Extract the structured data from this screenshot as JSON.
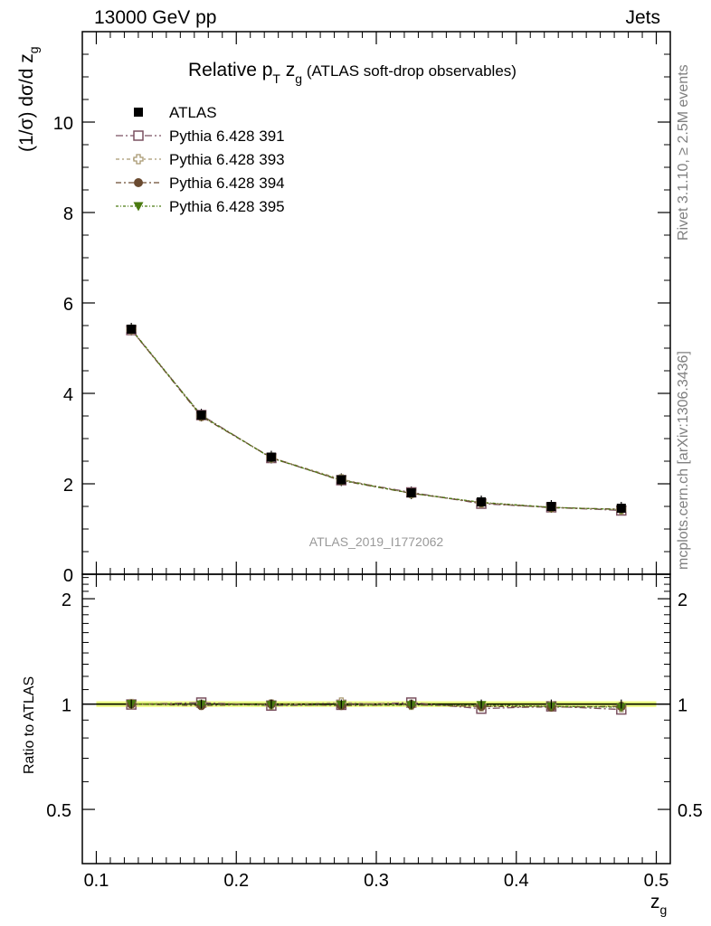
{
  "header": {
    "left": "13000 GeV pp",
    "right": "Jets"
  },
  "side_text": {
    "rivet": "Rivet 3.1.10, ≥ 2.5M events",
    "mcplots": "mcplots.cern.ch [arXiv:1306.3436]"
  },
  "title": {
    "prefix": "Relative p",
    "sub1": "T",
    "mid": " z",
    "sub2": "g",
    "suffix": " (ATLAS soft-drop observables)"
  },
  "watermark": "ATLAS_2019_I1772062",
  "colors": {
    "atlas": "#000000",
    "p391": "#7a5060",
    "p393": "#a89870",
    "p394": "#6a4a30",
    "p395": "#4a7a10",
    "band_outer": "#f4ff9a",
    "band_inner": "#d8f060"
  },
  "chart_data": [
    {
      "type": "line",
      "panel": "main",
      "ylabel": "(1/σ) dσ/d z",
      "ylabel_sub": "g",
      "xlim": [
        0.09,
        0.51
      ],
      "ylim": [
        0,
        12
      ],
      "x_ticks": [
        0.1,
        0.2,
        0.3,
        0.4,
        0.5
      ],
      "y_ticks": [
        0,
        2,
        4,
        6,
        8,
        10
      ],
      "y_tick_labels": [
        "0",
        "2",
        "4",
        "6",
        "8",
        "10"
      ],
      "legend_position": "top-left",
      "x": [
        0.125,
        0.175,
        0.225,
        0.275,
        0.325,
        0.375,
        0.425,
        0.475
      ],
      "series": [
        {
          "name": "ATLAS",
          "marker": "filled-square",
          "values": [
            5.42,
            3.52,
            2.59,
            2.09,
            1.8,
            1.6,
            1.5,
            1.46
          ]
        },
        {
          "name": "Pythia 6.428 391",
          "marker": "open-square",
          "values": [
            5.4,
            3.52,
            2.57,
            2.08,
            1.81,
            1.56,
            1.48,
            1.41
          ]
        },
        {
          "name": "Pythia 6.428 393",
          "marker": "open-cross",
          "values": [
            5.41,
            3.5,
            2.58,
            2.1,
            1.79,
            1.58,
            1.48,
            1.43
          ]
        },
        {
          "name": "Pythia 6.428 394",
          "marker": "filled-circle",
          "values": [
            5.41,
            3.49,
            2.58,
            2.07,
            1.79,
            1.58,
            1.47,
            1.44
          ]
        },
        {
          "name": "Pythia 6.428 395",
          "marker": "filled-triangle-down",
          "values": [
            5.42,
            3.51,
            2.57,
            2.08,
            1.79,
            1.59,
            1.48,
            1.43
          ]
        }
      ]
    },
    {
      "type": "line",
      "panel": "ratio",
      "ylabel": "Ratio to ATLAS",
      "xlabel": "z",
      "xlabel_sub": "g",
      "xlim": [
        0.09,
        0.51
      ],
      "ylim": [
        0.35,
        2.35
      ],
      "x_ticks": [
        0.1,
        0.2,
        0.3,
        0.4,
        0.5
      ],
      "x_tick_labels": [
        "0.1",
        "0.2",
        "0.3",
        "0.4",
        "0.5"
      ],
      "y_ticks": [
        0.5,
        1,
        2
      ],
      "y_tick_labels": [
        "0.5",
        "1",
        "2"
      ],
      "x": [
        0.125,
        0.175,
        0.225,
        0.275,
        0.325,
        0.375,
        0.425,
        0.475
      ],
      "band": {
        "outer": 0.02,
        "inner": 0.01
      },
      "series": [
        {
          "name": "Pythia 6.428 391",
          "values": [
            0.997,
            1.01,
            0.99,
            0.995,
            1.01,
            0.97,
            0.985,
            0.965
          ]
        },
        {
          "name": "Pythia 6.428 393",
          "values": [
            1.0,
            0.995,
            0.997,
            1.01,
            0.995,
            0.985,
            0.985,
            0.98
          ]
        },
        {
          "name": "Pythia 6.428 394",
          "values": [
            1.0,
            0.99,
            1.0,
            0.99,
            0.995,
            0.985,
            0.98,
            0.985
          ]
        },
        {
          "name": "Pythia 6.428 395",
          "values": [
            1.0,
            0.997,
            0.993,
            0.995,
            0.993,
            0.993,
            0.985,
            0.98
          ]
        }
      ]
    }
  ]
}
